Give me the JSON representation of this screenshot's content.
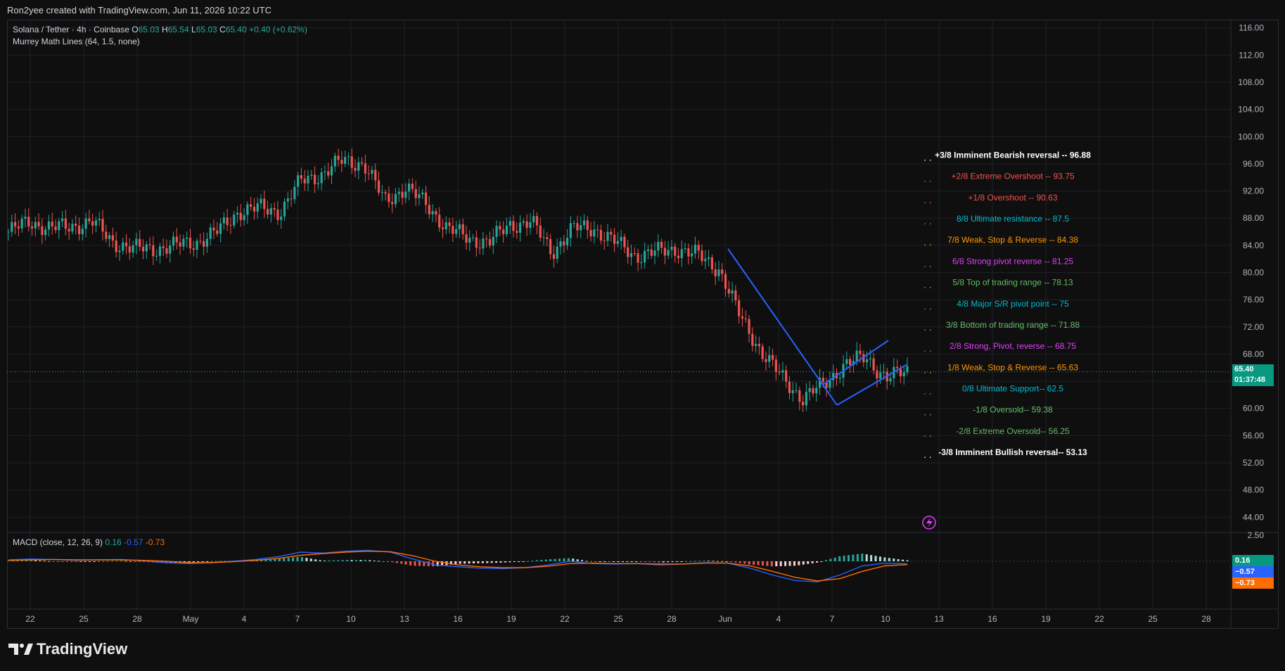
{
  "header": {
    "credit": "Ron2yee created with TradingView.com, Jun 11, 2026 10:22 UTC"
  },
  "legend": {
    "symbol": "Solana / Tether · 4h · Coinbase",
    "o_label": "O",
    "o_value": "65.03",
    "h_label": "H",
    "h_value": "65.54",
    "l_label": "L",
    "l_value": "65.03",
    "c_label": "C",
    "c_value": "65.40",
    "change": "+0.40 (+0.62%)",
    "indicator": "Murrey Math Lines (64, 1.5, none)"
  },
  "macd_legend": {
    "label": "MACD (close, 12, 26, 9)",
    "hist": "0.16",
    "macd": "-0.57",
    "signal": "-0.73"
  },
  "price_badge": {
    "price": "65.40",
    "timer": "01:37:48"
  },
  "macd_badges": {
    "hist": "0.16",
    "macd": "−0.57",
    "signal": "−0.73"
  },
  "footer": {
    "brand": "TradingView"
  },
  "colors": {
    "up": "#26a69a",
    "down": "#ef5350",
    "macd_line": "#2962ff",
    "signal_line": "#ff6d00",
    "trendline": "#2962ff",
    "grid": "#1e2128"
  },
  "chart_data": {
    "type": "candlestick",
    "y_axis": {
      "ticks": [
        "116.00",
        "112.00",
        "108.00",
        "104.00",
        "100.00",
        "96.00",
        "92.00",
        "88.00",
        "84.00",
        "80.00",
        "76.00",
        "72.00",
        "68.00",
        "64.00",
        "60.00",
        "56.00",
        "52.00",
        "48.00",
        "44.00"
      ],
      "range": [
        43,
        117
      ]
    },
    "x_axis": {
      "ticks": [
        "22",
        "25",
        "28",
        "May",
        "4",
        "7",
        "10",
        "13",
        "16",
        "19",
        "22",
        "25",
        "28",
        "Jun",
        "4",
        "7",
        "10",
        "13",
        "16",
        "19",
        "22",
        "25",
        "28"
      ]
    },
    "macd_axis": {
      "ticks": [
        "2.50"
      ]
    },
    "price_path": [
      [
        "22",
        86.0
      ],
      [
        "23",
        87.5
      ],
      [
        "24",
        86.5
      ],
      [
        "25",
        86.8
      ],
      [
        "27",
        87.5
      ],
      [
        "28",
        84.5
      ],
      [
        "30",
        83.5
      ],
      [
        "May",
        83.5
      ],
      [
        "3",
        84.0
      ],
      [
        "4",
        84.5
      ],
      [
        "5",
        86.0
      ],
      [
        "6",
        89.0
      ],
      [
        "7",
        89.5
      ],
      [
        "8",
        89.0
      ],
      [
        "9",
        93.5
      ],
      [
        "10",
        94.5
      ],
      [
        "11",
        96.5
      ],
      [
        "12",
        96.0
      ],
      [
        "13",
        90.5
      ],
      [
        "14",
        92.5
      ],
      [
        "15",
        90.0
      ],
      [
        "16",
        86.5
      ],
      [
        "18",
        85.0
      ],
      [
        "19",
        84.5
      ],
      [
        "21",
        87.0
      ],
      [
        "22",
        87.5
      ],
      [
        "23",
        83.0
      ],
      [
        "24",
        86.5
      ],
      [
        "25",
        86.5
      ],
      [
        "27",
        84.5
      ],
      [
        "28",
        82.5
      ],
      [
        "30",
        83.0
      ],
      [
        "31",
        83.5
      ],
      [
        "Jun",
        82.5
      ],
      [
        "2",
        80.5
      ],
      [
        "3",
        73.5
      ],
      [
        "4",
        68.5
      ],
      [
        "5",
        64.5
      ],
      [
        "6",
        61.5
      ],
      [
        "7",
        63.5
      ],
      [
        "8",
        66.5
      ],
      [
        "9",
        67.5
      ],
      [
        "10",
        64.5
      ],
      [
        "11",
        65.4
      ]
    ],
    "murrey_lines": [
      {
        "label": "+3/8 Imminent Bearish reversal --",
        "value": "96.88",
        "color": "#ffffff"
      },
      {
        "label": "+2/8 Extreme Overshoot --",
        "value": "93.75",
        "color": "#ef5350"
      },
      {
        "label": "+1/8 Overshoot --",
        "value": "90.63",
        "color": "#ef5350"
      },
      {
        "label": "8/8 Ultimate resistance --",
        "value": "87.5",
        "color": "#00bcd4"
      },
      {
        "label": "7/8 Weak, Stop & Reverse --",
        "value": "84.38",
        "color": "#ff9800"
      },
      {
        "label": "6/8 Strong pivot reverse --",
        "value": "81.25",
        "color": "#e040fb"
      },
      {
        "label": "5/8 Top of trading range --",
        "value": "78.13",
        "color": "#66bb6a"
      },
      {
        "label": "4/8 Major S/R pivot point --",
        "value": "75",
        "color": "#00bcd4"
      },
      {
        "label": "3/8 Bottom of trading range --",
        "value": "71.88",
        "color": "#66bb6a"
      },
      {
        "label": "2/8 Strong, Pivot, reverse --",
        "value": "68.75",
        "color": "#e040fb"
      },
      {
        "label": "1/8 Weak, Stop & Reverse --",
        "value": "65.63",
        "color": "#ff9800"
      },
      {
        "label": "0/8 Ultimate Support--",
        "value": "62.5",
        "color": "#00bcd4"
      },
      {
        "label": "-1/8 Oversold--",
        "value": "59.38",
        "color": "#66bb6a"
      },
      {
        "label": "-2/8 Extreme Oversold--",
        "value": "56.25",
        "color": "#66bb6a"
      },
      {
        "label": "-3/8 Imminent Bullish reversal--",
        "value": "53.13",
        "color": "#ffffff"
      }
    ],
    "macd": {
      "macd_path": [
        0.3,
        0.5,
        0.4,
        0.2,
        0.3,
        0.4,
        0.1,
        -0.3,
        -0.5,
        -0.3,
        0.0,
        0.4,
        1.0,
        2.0,
        1.8,
        2.2,
        2.4,
        2.0,
        0.5,
        -0.8,
        -1.2,
        -1.5,
        -1.6,
        -1.4,
        -0.8,
        0.0,
        -0.5,
        -0.6,
        -0.5,
        -0.8,
        -0.6,
        -0.3,
        -0.4,
        -1.5,
        -3.0,
        -4.2,
        -4.5,
        -3.0,
        -1.0,
        -0.4,
        -0.57
      ],
      "signal_path": [
        0.2,
        0.3,
        0.4,
        0.3,
        0.3,
        0.3,
        0.2,
        0.0,
        -0.3,
        -0.3,
        -0.1,
        0.2,
        0.6,
        1.3,
        1.7,
        2.0,
        2.2,
        2.1,
        1.2,
        0.0,
        -0.8,
        -1.2,
        -1.4,
        -1.4,
        -1.1,
        -0.5,
        -0.4,
        -0.5,
        -0.5,
        -0.6,
        -0.6,
        -0.4,
        -0.4,
        -1.0,
        -2.2,
        -3.5,
        -4.3,
        -3.8,
        -2.2,
        -1.0,
        -0.73
      ]
    }
  }
}
